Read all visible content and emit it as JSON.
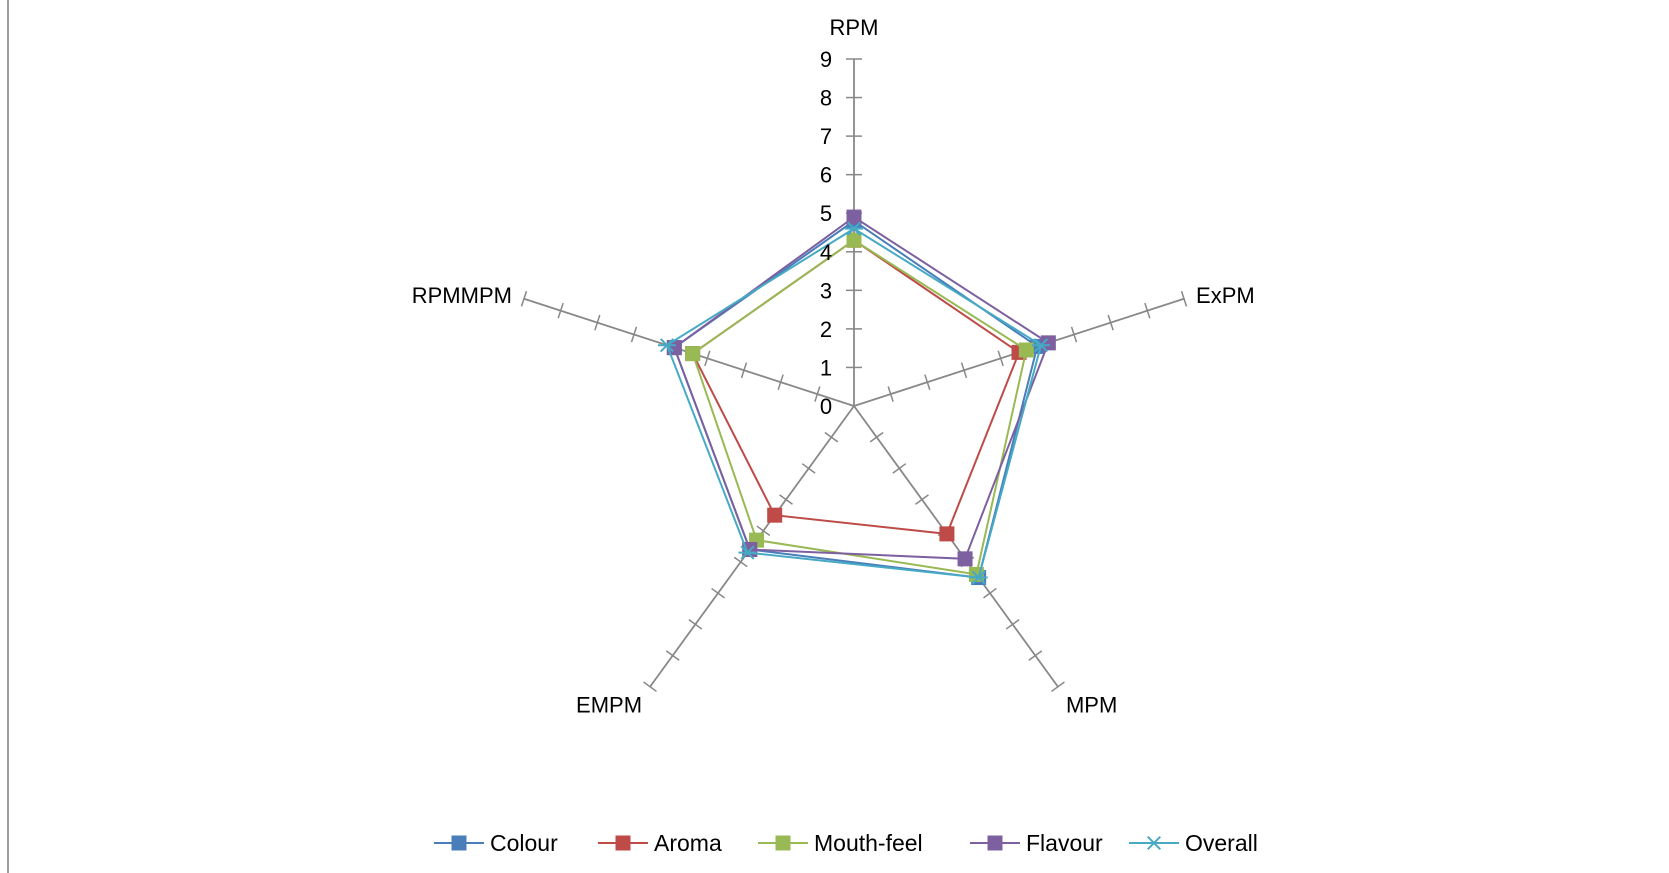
{
  "chart_data": {
    "type": "radar",
    "axes": [
      "RPM",
      "ExPM",
      "MPM",
      "EMPM",
      "RPMMPM"
    ],
    "rlim": [
      0,
      9
    ],
    "ticks": [
      0,
      1,
      2,
      3,
      4,
      5,
      6,
      7,
      8,
      9
    ],
    "grid": false,
    "legend_position": "bottom",
    "series": [
      {
        "name": "Colour",
        "color": "#4a7ebb",
        "marker": "square",
        "values": [
          4.8,
          5.0,
          5.5,
          4.6,
          4.9
        ]
      },
      {
        "name": "Aroma",
        "color": "#be4b48",
        "marker": "square",
        "values": [
          4.3,
          4.5,
          4.1,
          3.5,
          4.4
        ]
      },
      {
        "name": "Mouth-feel",
        "color": "#98b954",
        "marker": "square",
        "values": [
          4.3,
          4.7,
          5.4,
          4.3,
          4.4
        ]
      },
      {
        "name": "Flavour",
        "color": "#7d60a0",
        "marker": "square",
        "values": [
          4.9,
          5.3,
          4.9,
          4.6,
          4.9
        ]
      },
      {
        "name": "Overall",
        "color": "#46aac5",
        "marker": "asterisk",
        "values": [
          4.6,
          5.1,
          5.5,
          4.7,
          5.1
        ]
      }
    ]
  }
}
